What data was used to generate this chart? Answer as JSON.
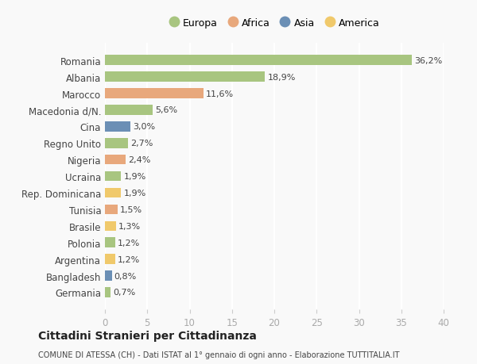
{
  "categories": [
    "Romania",
    "Albania",
    "Marocco",
    "Macedonia d/N.",
    "Cina",
    "Regno Unito",
    "Nigeria",
    "Ucraina",
    "Rep. Dominicana",
    "Tunisia",
    "Brasile",
    "Polonia",
    "Argentina",
    "Bangladesh",
    "Germania"
  ],
  "values": [
    36.2,
    18.9,
    11.6,
    5.6,
    3.0,
    2.7,
    2.4,
    1.9,
    1.9,
    1.5,
    1.3,
    1.2,
    1.2,
    0.8,
    0.7
  ],
  "labels": [
    "36,2%",
    "18,9%",
    "11,6%",
    "5,6%",
    "3,0%",
    "2,7%",
    "2,4%",
    "1,9%",
    "1,9%",
    "1,5%",
    "1,3%",
    "1,2%",
    "1,2%",
    "0,8%",
    "0,7%"
  ],
  "continent": [
    "Europa",
    "Europa",
    "Africa",
    "Europa",
    "Asia",
    "Europa",
    "Africa",
    "Europa",
    "America",
    "Africa",
    "America",
    "Europa",
    "America",
    "Asia",
    "Europa"
  ],
  "colors": {
    "Europa": "#a8c580",
    "Africa": "#e8a87c",
    "Asia": "#6b8fb5",
    "America": "#f0c96b"
  },
  "legend_colors": {
    "Europa": "#a8c580",
    "Africa": "#e8a87c",
    "Asia": "#6b8fb5",
    "America": "#f0c96b"
  },
  "legend_entries": [
    "Europa",
    "Africa",
    "Asia",
    "America"
  ],
  "xlim": [
    0,
    40
  ],
  "xticks": [
    0,
    5,
    10,
    15,
    20,
    25,
    30,
    35,
    40
  ],
  "title": "Cittadini Stranieri per Cittadinanza",
  "subtitle": "COMUNE DI ATESSA (CH) - Dati ISTAT al 1° gennaio di ogni anno - Elaborazione TUTTITALIA.IT",
  "background_color": "#f9f9f9",
  "grid_color": "#ffffff",
  "bar_height": 0.6
}
